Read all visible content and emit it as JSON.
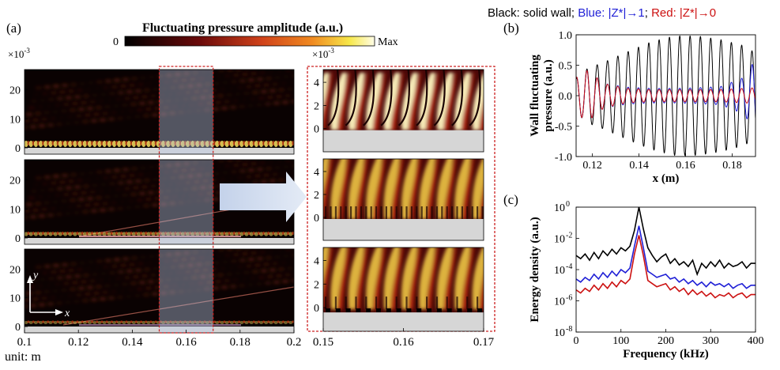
{
  "header": {
    "legend_prefix": "Black: solid wall; ",
    "legend_blue": "Blue: |Z*|→1",
    "legend_sep": "; ",
    "legend_red": "Red: |Z*|→0"
  },
  "panel_labels": {
    "a": "(a)",
    "b": "(b)",
    "c": "(c)"
  },
  "colorbar": {
    "title": "Fluctuating pressure amplitude (a.u.)",
    "min": "0",
    "max": "Max"
  },
  "panel_a": {
    "y_scale": "×10",
    "y_scale_exp": "-3",
    "zoom_y_scale": "×10",
    "zoom_y_scale_exp": "-3",
    "unit_label": "unit: m",
    "axis_y": "y",
    "axis_x": "x"
  },
  "colors": {
    "solid": "#000000",
    "blue": "#1f1fd6",
    "red": "#cc1111",
    "highlight": "#cc2020"
  },
  "chart_data": [
    {
      "type": "heatmap",
      "id": "full-field",
      "rows": 3,
      "x_ticks": [
        "0.1",
        "0.12",
        "0.14",
        "0.16",
        "0.18",
        "0.2"
      ],
      "y_ticks": [
        "0",
        "10",
        "20"
      ],
      "xlim": [
        0.1,
        0.2
      ],
      "ylim": [
        0,
        0.027
      ],
      "highlight_x": [
        0.15,
        0.17
      ]
    },
    {
      "type": "heatmap",
      "id": "zoom-field",
      "rows": 3,
      "x_ticks": [
        "0.15",
        "0.16",
        "0.17"
      ],
      "y_ticks": [
        "0",
        "2",
        "4"
      ],
      "xlim": [
        0.15,
        0.17
      ],
      "ylim": [
        -0.002,
        0.0051
      ]
    },
    {
      "type": "line",
      "id": "wall-pressure",
      "xlabel": "x (m)",
      "ylabel": "Wall fluctuating pressure (a.u.)",
      "xlim": [
        0.113,
        0.19
      ],
      "ylim": [
        -1.0,
        1.0
      ],
      "x_ticks": [
        "0.12",
        "0.14",
        "0.16",
        "0.18"
      ],
      "y_ticks": [
        "-1.0",
        "-0.5",
        "0.0",
        "0.5",
        "1.0"
      ],
      "wavelength": 0.00443,
      "series": [
        {
          "name": "solid wall",
          "color_key": "solid",
          "env_x": [
            0.113,
            0.118,
            0.125,
            0.135,
            0.145,
            0.155,
            0.165,
            0.175,
            0.185,
            0.19
          ],
          "env_y": [
            0.28,
            0.45,
            0.55,
            0.72,
            0.88,
            0.98,
            0.98,
            0.92,
            0.82,
            0.7
          ]
        },
        {
          "name": "|Z*|→1",
          "color_key": "blue",
          "env_x": [
            0.113,
            0.118,
            0.125,
            0.135,
            0.145,
            0.155,
            0.165,
            0.175,
            0.185,
            0.19
          ],
          "env_y": [
            0.3,
            0.42,
            0.2,
            0.14,
            0.12,
            0.12,
            0.13,
            0.15,
            0.3,
            0.6
          ]
        },
        {
          "name": "|Z*|→0",
          "color_key": "red",
          "env_x": [
            0.113,
            0.118,
            0.125,
            0.135,
            0.145,
            0.155,
            0.165,
            0.175,
            0.185,
            0.19
          ],
          "env_y": [
            0.3,
            0.42,
            0.2,
            0.12,
            0.1,
            0.1,
            0.1,
            0.1,
            0.12,
            0.13
          ]
        }
      ]
    },
    {
      "type": "line",
      "id": "energy-spectrum",
      "xlabel": "Frequency (kHz)",
      "ylabel": "Energy density (a.u.)",
      "xlim": [
        0,
        400
      ],
      "ylim_log10": [
        -8,
        0
      ],
      "x_ticks": [
        "0",
        "100",
        "200",
        "300",
        "400"
      ],
      "y_ticks": [
        {
          "base": "10",
          "exp": "0"
        },
        {
          "base": "10",
          "exp": "-2"
        },
        {
          "base": "10",
          "exp": "-4"
        },
        {
          "base": "10",
          "exp": "-6"
        },
        {
          "base": "10",
          "exp": "-8"
        }
      ],
      "x": [
        0,
        10,
        20,
        30,
        40,
        50,
        60,
        70,
        80,
        90,
        100,
        110,
        120,
        130,
        140,
        150,
        160,
        170,
        180,
        190,
        200,
        210,
        220,
        230,
        240,
        250,
        260,
        270,
        280,
        290,
        300,
        310,
        320,
        330,
        340,
        350,
        360,
        370,
        380,
        390,
        400
      ],
      "series": [
        {
          "name": "solid wall",
          "color_key": "solid",
          "log10_y": [
            -3.1,
            -3.3,
            -3.0,
            -3.4,
            -2.9,
            -3.3,
            -2.8,
            -3.1,
            -2.7,
            -3.0,
            -2.6,
            -2.8,
            -2.5,
            -1.5,
            0.0,
            -1.4,
            -2.6,
            -3.1,
            -3.5,
            -3.2,
            -3.0,
            -3.6,
            -3.3,
            -3.7,
            -3.5,
            -3.8,
            -3.4,
            -4.3,
            -3.6,
            -3.9,
            -3.5,
            -3.8,
            -3.4,
            -3.9,
            -3.6,
            -3.8,
            -3.7,
            -3.5,
            -3.9,
            -3.6,
            -3.6
          ]
        },
        {
          "name": "|Z*|→1",
          "color_key": "blue",
          "log10_y": [
            -4.6,
            -4.8,
            -4.5,
            -4.7,
            -4.3,
            -4.6,
            -4.2,
            -4.5,
            -4.1,
            -4.4,
            -4.0,
            -4.2,
            -3.9,
            -2.5,
            -1.2,
            -2.6,
            -4.1,
            -4.3,
            -4.5,
            -4.4,
            -4.3,
            -4.6,
            -4.5,
            -4.8,
            -4.6,
            -4.9,
            -4.7,
            -5.0,
            -4.8,
            -5.1,
            -4.8,
            -5.0,
            -4.9,
            -5.1,
            -4.9,
            -5.2,
            -5.0,
            -4.9,
            -5.2,
            -5.0,
            -5.0
          ]
        },
        {
          "name": "|Z*|→0",
          "color_key": "red",
          "log10_y": [
            -5.3,
            -5.5,
            -5.2,
            -5.4,
            -5.0,
            -5.3,
            -4.9,
            -5.2,
            -4.8,
            -5.1,
            -4.7,
            -4.9,
            -4.6,
            -3.0,
            -1.8,
            -3.1,
            -4.7,
            -4.9,
            -5.1,
            -5.0,
            -4.9,
            -5.3,
            -5.1,
            -5.4,
            -5.2,
            -5.6,
            -5.3,
            -5.6,
            -5.4,
            -5.7,
            -5.5,
            -5.8,
            -5.6,
            -5.7,
            -5.5,
            -5.8,
            -5.6,
            -5.5,
            -5.8,
            -5.6,
            -5.6
          ]
        }
      ]
    }
  ]
}
